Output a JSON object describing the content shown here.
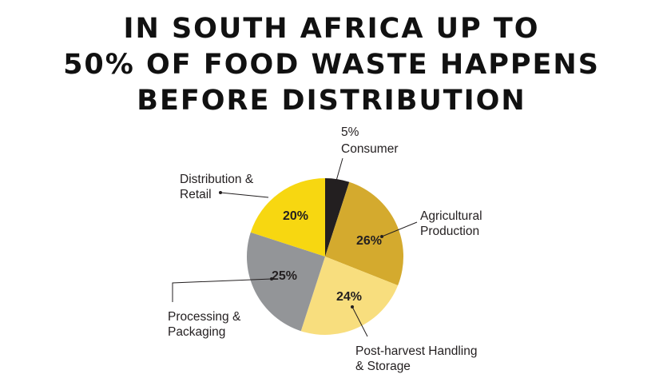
{
  "chart_data": {
    "type": "pie",
    "title": "IN SOUTH AFRICA UP TO\n50% OF FOOD WASTE HAPPENS\nBEFORE DISTRIBUTION",
    "categories": [
      "Consumer",
      "Agricultural Production",
      "Post-harvest Handling & Storage",
      "Processing & Packaging",
      "Distribution & Retail"
    ],
    "values": [
      5,
      26,
      24,
      25,
      20
    ],
    "value_labels": [
      "5%",
      "26%",
      "24%",
      "25%",
      "20%"
    ],
    "colors": [
      "#231f20",
      "#d4aa2e",
      "#f8de7e",
      "#939598",
      "#f7d711"
    ]
  }
}
